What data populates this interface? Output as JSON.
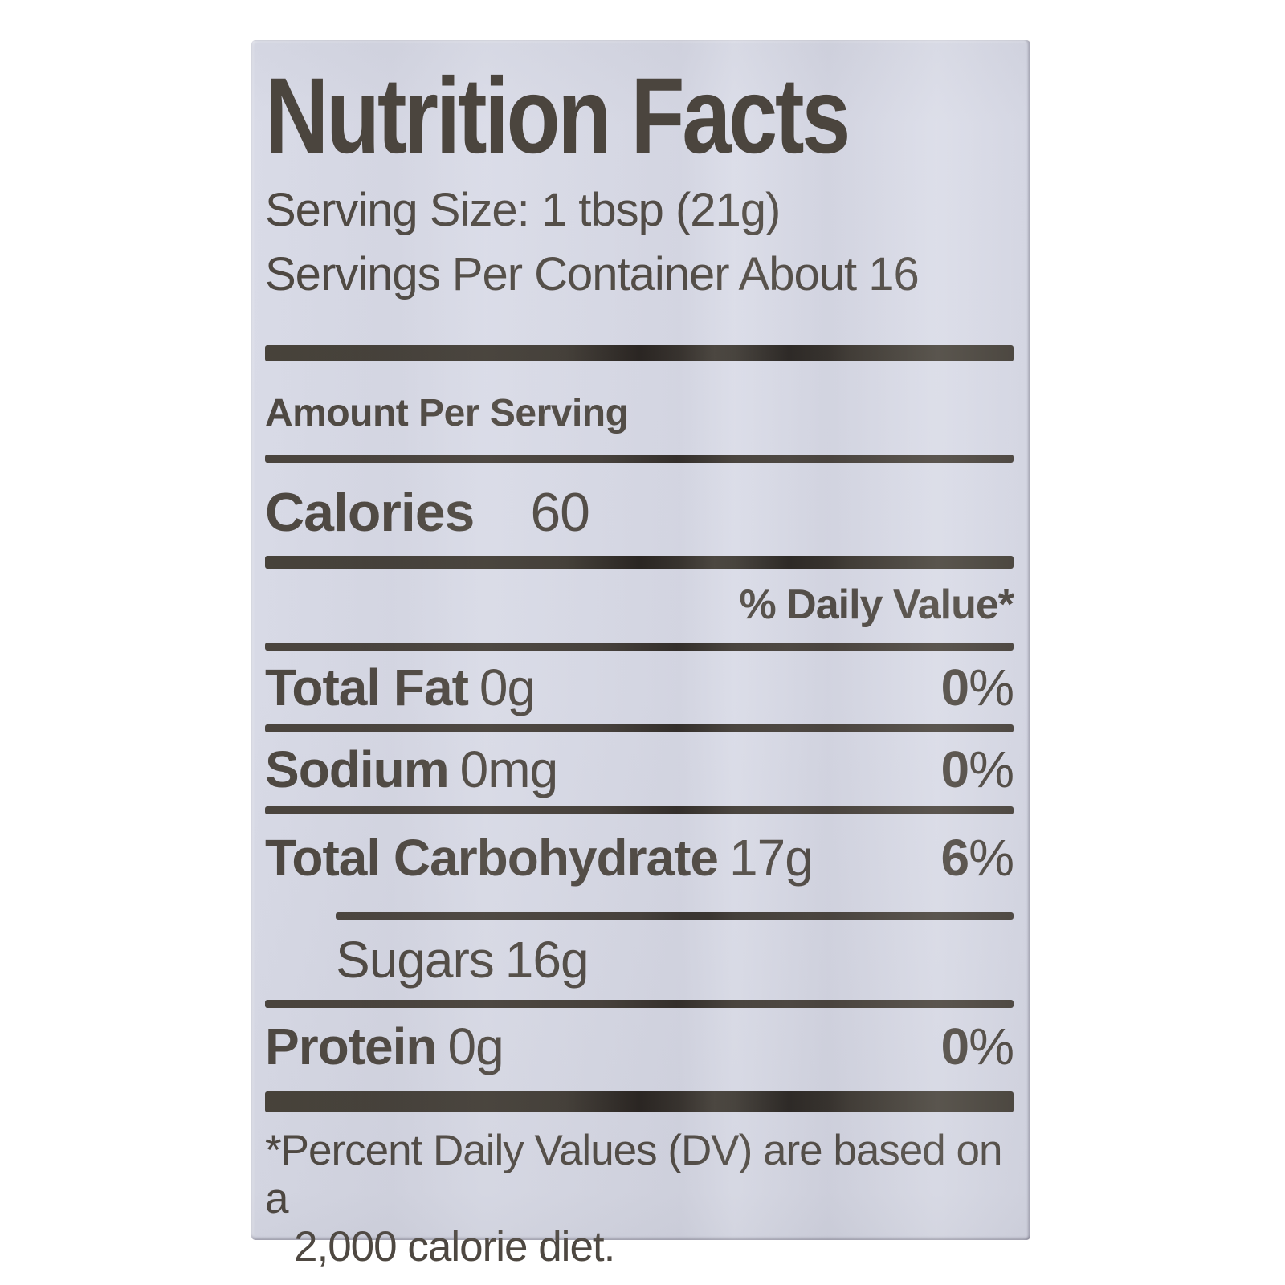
{
  "label": {
    "title": "Nutrition Facts",
    "serving_size": "Serving Size: 1 tbsp (21g)",
    "servings_per_container": "Servings Per Container About 16",
    "amount_per_serving": "Amount Per Serving",
    "calories_label": "Calories",
    "calories_value": "60",
    "daily_value_header": "% Daily Value*",
    "rows": [
      {
        "name": "Total Fat",
        "amount": "0g",
        "dv_num": "0",
        "dv_sym": "%"
      },
      {
        "name": "Sodium",
        "amount": "0mg",
        "dv_num": "0",
        "dv_sym": "%"
      },
      {
        "name": "Total Carbohydrate",
        "amount": "17g",
        "dv_num": "6",
        "dv_sym": "%"
      },
      {
        "name": "Sugars",
        "amount": "16g",
        "dv_num": "",
        "dv_sym": ""
      },
      {
        "name": "Protein",
        "amount": "0g",
        "dv_num": "0",
        "dv_sym": "%"
      }
    ],
    "footnote_line1": "*Percent Daily Values (DV) are based on a",
    "footnote_line2": "2,000 calorie diet.",
    "colors": {
      "label_bg": "#d8dae6",
      "ink": "#4e4841",
      "bar": "#3e3932"
    }
  }
}
